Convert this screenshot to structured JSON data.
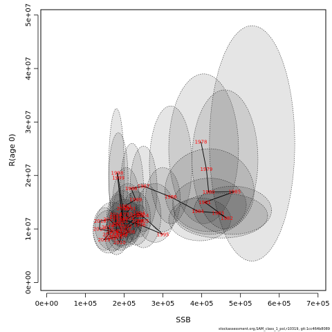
{
  "footer": "stockassessment.org,SAM_class_1_pol,r10319, git:1cc464b8089",
  "chart_data": {
    "type": "scatter",
    "title": "",
    "xlabel": "SSB",
    "ylabel": "R(age 0)",
    "xlim": [
      -15000,
      720000
    ],
    "ylim": [
      -1500000,
      51000000
    ],
    "grid": false,
    "legend": "none",
    "x_ticks": [
      0,
      100000,
      200000,
      300000,
      400000,
      500000,
      600000,
      700000
    ],
    "x_tick_labels": [
      "0e+00",
      "1e+05",
      "2e+05",
      "3e+05",
      "4e+05",
      "5e+05",
      "6e+05",
      "7e+05"
    ],
    "y_ticks": [
      0,
      10000000,
      20000000,
      30000000,
      40000000,
      50000000
    ],
    "y_tick_labels": [
      "0e+00",
      "1e+07",
      "2e+07",
      "3e+07",
      "4e+07",
      "5e+07"
    ],
    "colors": {
      "line": "#000000",
      "labels": "#ff0000",
      "ellipse_fill": "#000000",
      "ellipse_stroke": "#333333"
    },
    "points": [
      {
        "year": "1978",
        "ssb": 398000,
        "rec": 26300000
      },
      {
        "year": "1979",
        "ssb": 412000,
        "rec": 21200000
      },
      {
        "year": "1980",
        "ssb": 418000,
        "rec": 16900000
      },
      {
        "year": "1985",
        "ssb": 485000,
        "rec": 17000000
      },
      {
        "year": "1981",
        "ssb": 408000,
        "rec": 15000000
      },
      {
        "year": "1982",
        "ssb": 465000,
        "rec": 12000000
      },
      {
        "year": "1983",
        "ssb": 442000,
        "rec": 13000000
      },
      {
        "year": "1984",
        "ssb": 390000,
        "rec": 13300000
      },
      {
        "year": "1986",
        "ssb": 320000,
        "rec": 16000000
      },
      {
        "year": "1987",
        "ssb": 250000,
        "rec": 18000000
      },
      {
        "year": "1988",
        "ssb": 218000,
        "rec": 17600000
      },
      {
        "year": "1989",
        "ssb": 230000,
        "rec": 15500000
      },
      {
        "year": "1990",
        "ssb": 202000,
        "rec": 14300000
      },
      {
        "year": "1991",
        "ssb": 215000,
        "rec": 13800000
      },
      {
        "year": "1992",
        "ssb": 205000,
        "rec": 12800000
      },
      {
        "year": "1993",
        "ssb": 210000,
        "rec": 12000000
      },
      {
        "year": "1994",
        "ssb": 238000,
        "rec": 13000000
      },
      {
        "year": "1995",
        "ssb": 300000,
        "rec": 9000000
      },
      {
        "year": "1996",
        "ssb": 240000,
        "rec": 10800000
      },
      {
        "year": "1997",
        "ssb": 195000,
        "rec": 11800000
      },
      {
        "year": "1998",
        "ssb": 182000,
        "rec": 20500000
      },
      {
        "year": "1999",
        "ssb": 185000,
        "rec": 19600000
      },
      {
        "year": "2000",
        "ssb": 196000,
        "rec": 13800000
      },
      {
        "year": "2001",
        "ssb": 195000,
        "rec": 11500000
      },
      {
        "year": "2002",
        "ssb": 205000,
        "rec": 10500000
      },
      {
        "year": "2003",
        "ssb": 233000,
        "rec": 12500000
      },
      {
        "year": "2004",
        "ssb": 248000,
        "rec": 12500000
      },
      {
        "year": "2005",
        "ssb": 248000,
        "rec": 11500000
      },
      {
        "year": "2006",
        "ssb": 235000,
        "rec": 11500000
      },
      {
        "year": "2007",
        "ssb": 202000,
        "rec": 10000000
      },
      {
        "year": "2008",
        "ssb": 212000,
        "rec": 9500000
      },
      {
        "year": "2009",
        "ssb": 192000,
        "rec": 8800000
      },
      {
        "year": "2010",
        "ssb": 188000,
        "rec": 7500000
      },
      {
        "year": "2011",
        "ssb": 180000,
        "rec": 8500000
      },
      {
        "year": "2012",
        "ssb": 166000,
        "rec": 8300000
      },
      {
        "year": "2013",
        "ssb": 148000,
        "rec": 8000000
      },
      {
        "year": "2014",
        "ssb": 160000,
        "rec": 9000000
      },
      {
        "year": "2015",
        "ssb": 158000,
        "rec": 10300000
      },
      {
        "year": "2016",
        "ssb": 170000,
        "rec": 9500000
      },
      {
        "year": "2017",
        "ssb": 136000,
        "rec": 10000000
      },
      {
        "year": "2018",
        "ssb": 138000,
        "rec": 11500000
      },
      {
        "year": "2019",
        "ssb": 162000,
        "rec": 11800000
      },
      {
        "year": "2020",
        "ssb": 175000,
        "rec": 10800000
      },
      {
        "year": "2021",
        "ssb": 185000,
        "rec": 11000000
      },
      {
        "year": "2022",
        "ssb": 195000,
        "rec": 9200000
      },
      {
        "year": "2023",
        "ssb": 180000,
        "rec": 9600000
      },
      {
        "year": "2024",
        "ssb": 178000,
        "rec": 12700000
      },
      {
        "year": "2025",
        "ssb": 178000,
        "rec": 12300000
      }
    ],
    "ellipses": [
      {
        "cx": 530000,
        "cy": 26000000,
        "rx": 110000,
        "ry": 22000000,
        "angle": 0
      },
      {
        "cx": 460000,
        "cy": 23000000,
        "rx": 85000,
        "ry": 13000000,
        "angle": 0
      },
      {
        "cx": 420000,
        "cy": 17000000,
        "rx": 115000,
        "ry": 8000000,
        "angle": 0
      },
      {
        "cx": 480000,
        "cy": 13500000,
        "rx": 100000,
        "ry": 4500000,
        "angle": 0
      },
      {
        "cx": 450000,
        "cy": 12500000,
        "rx": 120000,
        "ry": 4200000,
        "angle": 0
      },
      {
        "cx": 420000,
        "cy": 14500000,
        "rx": 95000,
        "ry": 5000000,
        "angle": 0
      },
      {
        "cx": 395000,
        "cy": 11800000,
        "rx": 80000,
        "ry": 4000000,
        "angle": 0
      },
      {
        "cx": 405000,
        "cy": 25000000,
        "rx": 90000,
        "ry": 14000000,
        "angle": 0
      },
      {
        "cx": 320000,
        "cy": 22000000,
        "rx": 55000,
        "ry": 11000000,
        "angle": 0
      },
      {
        "cx": 300000,
        "cy": 15500000,
        "rx": 45000,
        "ry": 6000000,
        "angle": 0
      },
      {
        "cx": 280000,
        "cy": 13000000,
        "rx": 50000,
        "ry": 5500000,
        "angle": 0
      },
      {
        "cx": 250000,
        "cy": 17500000,
        "rx": 35000,
        "ry": 8000000,
        "angle": 0
      },
      {
        "cx": 250000,
        "cy": 12500000,
        "rx": 45000,
        "ry": 6000000,
        "angle": 0
      },
      {
        "cx": 180000,
        "cy": 21000000,
        "rx": 20000,
        "ry": 11500000,
        "angle": 0
      },
      {
        "cx": 185000,
        "cy": 19500000,
        "rx": 25000,
        "ry": 8500000,
        "angle": 0
      },
      {
        "cx": 220000,
        "cy": 17500000,
        "rx": 30000,
        "ry": 8500000,
        "angle": 0
      },
      {
        "cx": 205000,
        "cy": 15000000,
        "rx": 35000,
        "ry": 6500000,
        "angle": 0
      },
      {
        "cx": 210000,
        "cy": 13000000,
        "rx": 40000,
        "ry": 5500000,
        "angle": 0
      },
      {
        "cx": 195000,
        "cy": 12000000,
        "rx": 40000,
        "ry": 5200000,
        "angle": 0
      },
      {
        "cx": 230000,
        "cy": 12000000,
        "rx": 38000,
        "ry": 5000000,
        "angle": 0
      },
      {
        "cx": 200000,
        "cy": 11000000,
        "rx": 45000,
        "ry": 4500000,
        "angle": 0
      },
      {
        "cx": 170000,
        "cy": 10500000,
        "rx": 45000,
        "ry": 4500000,
        "angle": 0
      },
      {
        "cx": 190000,
        "cy": 10000000,
        "rx": 35000,
        "ry": 4000000,
        "angle": 0
      },
      {
        "cx": 160000,
        "cy": 9500000,
        "rx": 40000,
        "ry": 4000000,
        "angle": 0
      },
      {
        "cx": 180000,
        "cy": 9000000,
        "rx": 30000,
        "ry": 3800000,
        "angle": 0
      },
      {
        "cx": 210000,
        "cy": 10500000,
        "rx": 30000,
        "ry": 3500000,
        "angle": 0
      },
      {
        "cx": 150000,
        "cy": 10000000,
        "rx": 30000,
        "ry": 4000000,
        "angle": 0
      },
      {
        "cx": 185000,
        "cy": 12500000,
        "rx": 25000,
        "ry": 4000000,
        "angle": 0
      },
      {
        "cx": 220000,
        "cy": 11500000,
        "rx": 25000,
        "ry": 3500000,
        "angle": 0
      },
      {
        "cx": 240000,
        "cy": 11500000,
        "rx": 20000,
        "ry": 3000000,
        "angle": 0
      }
    ]
  }
}
